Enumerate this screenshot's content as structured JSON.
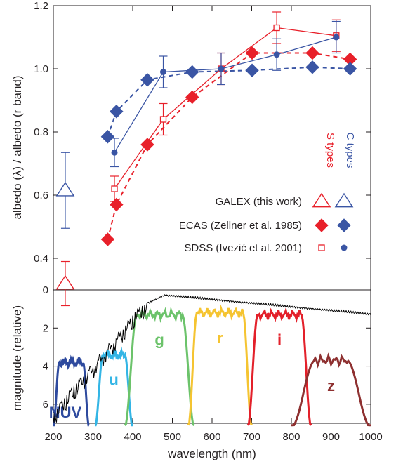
{
  "colors": {
    "s_type": "#e8202a",
    "c_type": "#3a55a4",
    "spectrum": "#000000",
    "axis": "#231f20"
  },
  "chart_data": [
    {
      "type": "line",
      "xlabel": "",
      "ylabel": "albedo (λ) / albedo (r band)",
      "xlim": [
        200,
        1000
      ],
      "ylim": [
        0.3,
        1.2
      ],
      "yticks": [
        "0.4",
        "0.6",
        "0.8",
        "1.0",
        "1.2"
      ],
      "column_labels": {
        "s": "S types",
        "c": "C types"
      },
      "legend": [
        {
          "label": "GALEX (this work)",
          "s_marker": "open-triangle",
          "c_marker": "open-triangle"
        },
        {
          "label": "ECAS (Zellner et al. 1985)",
          "s_marker": "filled-diamond",
          "c_marker": "filled-diamond"
        },
        {
          "label": "SDSS (Ivezić et al. 2001)",
          "s_marker": "open-square",
          "c_marker": "filled-circle"
        }
      ],
      "series": [
        {
          "name": "GALEX S types",
          "x": [
            230
          ],
          "y": [
            0.32
          ],
          "err": [
            0.07
          ]
        },
        {
          "name": "GALEX C types",
          "x": [
            230
          ],
          "y": [
            0.615
          ],
          "err": [
            0.12
          ]
        },
        {
          "name": "ECAS S types",
          "x": [
            337,
            359,
            437,
            550,
            701,
            853,
            948
          ],
          "y": [
            0.46,
            0.57,
            0.76,
            0.91,
            1.05,
            1.05,
            1.03
          ]
        },
        {
          "name": "ECAS C types",
          "x": [
            337,
            359,
            437,
            550,
            701,
            853,
            948
          ],
          "y": [
            0.785,
            0.865,
            0.965,
            0.99,
            0.995,
            1.005,
            1.0
          ]
        },
        {
          "name": "SDSS S types",
          "x": [
            354,
            477,
            623,
            763,
            913
          ],
          "y": [
            0.62,
            0.84,
            1.0,
            1.13,
            1.105
          ],
          "err": [
            0.04,
            0.05,
            0.05,
            0.05,
            0.05
          ]
        },
        {
          "name": "SDSS C types",
          "x": [
            354,
            477,
            623,
            763,
            913
          ],
          "y": [
            0.735,
            0.99,
            1.0,
            1.045,
            1.1
          ],
          "err": [
            0.045,
            0.05,
            0.05,
            0.05,
            0.05
          ]
        }
      ]
    },
    {
      "type": "line",
      "xlabel": "wavelength (nm)",
      "ylabel": "magnitude (relative)",
      "xlim": [
        200,
        1000
      ],
      "ylim": [
        7,
        0
      ],
      "xticks": [
        "200",
        "300",
        "400",
        "500",
        "600",
        "700",
        "800",
        "900",
        "1000"
      ],
      "yticks": [
        "0",
        "2",
        "4",
        "6"
      ],
      "filters": [
        {
          "name": "NUV",
          "color": "#2e4a9e",
          "lo": 200,
          "hi": 290,
          "rise": 15,
          "top": 3.8
        },
        {
          "name": "u",
          "color": "#33b5e5",
          "lo": 305,
          "hi": 400,
          "rise": 20,
          "top": 3.4
        },
        {
          "name": "g",
          "color": "#6cc36b",
          "lo": 380,
          "hi": 555,
          "rise": 30,
          "top": 1.3
        },
        {
          "name": "r",
          "color": "#f5c431",
          "lo": 540,
          "hi": 700,
          "rise": 22,
          "top": 1.2
        },
        {
          "name": "i",
          "color": "#e3202a",
          "lo": 690,
          "hi": 850,
          "rise": 25,
          "top": 1.3
        },
        {
          "name": "z",
          "color": "#8e3030",
          "lo": 800,
          "hi": 1000,
          "rise": 60,
          "top": 3.7
        }
      ]
    }
  ]
}
